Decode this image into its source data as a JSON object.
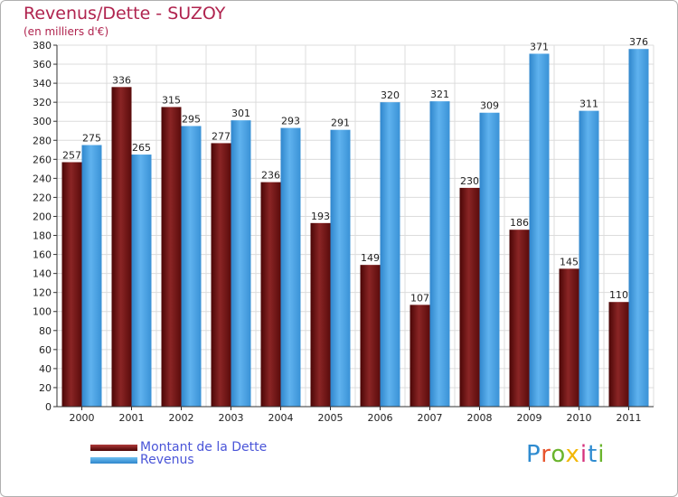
{
  "header": {
    "title": "Revenus/Dette - SUZOY",
    "subtitle": "(en milliers d'€)"
  },
  "legend": [
    {
      "label": "Montant de la Dette",
      "color": "#7b1a1a"
    },
    {
      "label": "Revenus",
      "color": "#4aa3e6"
    }
  ],
  "logo": {
    "text": "Proxiti",
    "letter_colors": [
      "#2e8bd0",
      "#e8542c",
      "#6ab42d",
      "#f2b705",
      "#d6337d",
      "#2e8bd0",
      "#6ab42d"
    ]
  },
  "colors": {
    "debt": "#7b1a1a",
    "revenue": "#4aa3e6",
    "grid": "#dcdcdc",
    "axis": "#333333",
    "title": "#b0244f",
    "legend_text": "#4a55d8"
  },
  "chart_data": {
    "type": "bar",
    "title": "Revenus/Dette - SUZOY",
    "subtitle": "(en milliers d'€)",
    "categories": [
      "2000",
      "2001",
      "2002",
      "2003",
      "2004",
      "2005",
      "2006",
      "2007",
      "2008",
      "2009",
      "2010",
      "2011"
    ],
    "series": [
      {
        "name": "Montant de la Dette",
        "values": [
          257,
          336,
          315,
          277,
          236,
          193,
          149,
          107,
          230,
          186,
          145,
          110
        ]
      },
      {
        "name": "Revenus",
        "values": [
          275,
          265,
          295,
          301,
          293,
          291,
          320,
          321,
          309,
          371,
          311,
          376
        ]
      }
    ],
    "ylim": [
      0,
      380
    ],
    "ytick_step": 20,
    "grid": true,
    "legend_position": "bottom-left"
  }
}
